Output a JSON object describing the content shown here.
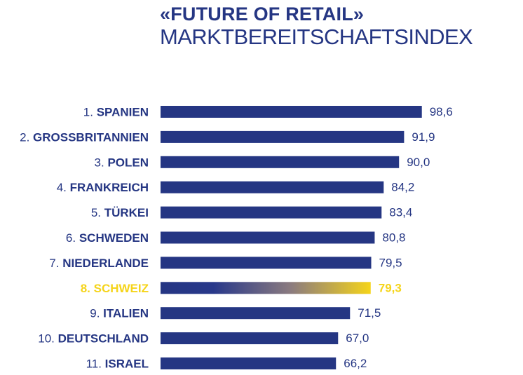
{
  "header": {
    "title": "«FUTURE OF RETAIL»",
    "subtitle": "MARKTBEREITSCHAFTSINDEX"
  },
  "colors": {
    "primary": "#253683",
    "highlight": "#f5d41a",
    "background": "#ffffff"
  },
  "chart_data": {
    "type": "bar",
    "orientation": "horizontal",
    "title": "«FUTURE OF RETAIL»",
    "subtitle": "MARKTBEREITSCHAFTSINDEX",
    "categories": [
      {
        "rank": "1.",
        "name": "SPANIEN"
      },
      {
        "rank": "2.",
        "name": "GROSSBRITANNIEN"
      },
      {
        "rank": "3.",
        "name": "POLEN"
      },
      {
        "rank": "4.",
        "name": "FRANKREICH"
      },
      {
        "rank": "5.",
        "name": "TÜRKEI"
      },
      {
        "rank": "6.",
        "name": "SCHWEDEN"
      },
      {
        "rank": "7.",
        "name": "NIEDERLANDE"
      },
      {
        "rank": "8.",
        "name": "SCHWEIZ"
      },
      {
        "rank": "9.",
        "name": "ITALIEN"
      },
      {
        "rank": "10.",
        "name": "DEUTSCHLAND"
      },
      {
        "rank": "11.",
        "name": "ISRAEL"
      }
    ],
    "values": [
      98.6,
      91.9,
      90.0,
      84.2,
      83.4,
      80.8,
      79.5,
      79.3,
      71.5,
      67.0,
      66.2
    ],
    "value_labels": [
      "98,6",
      "91,9",
      "90,0",
      "84,2",
      "83,4",
      "80,8",
      "79,5",
      "79,3",
      "71,5",
      "67,0",
      "66,2"
    ],
    "highlight_index": 7,
    "xlim": [
      0,
      100
    ],
    "grid": false,
    "axes_visible": false,
    "legend": "none"
  }
}
